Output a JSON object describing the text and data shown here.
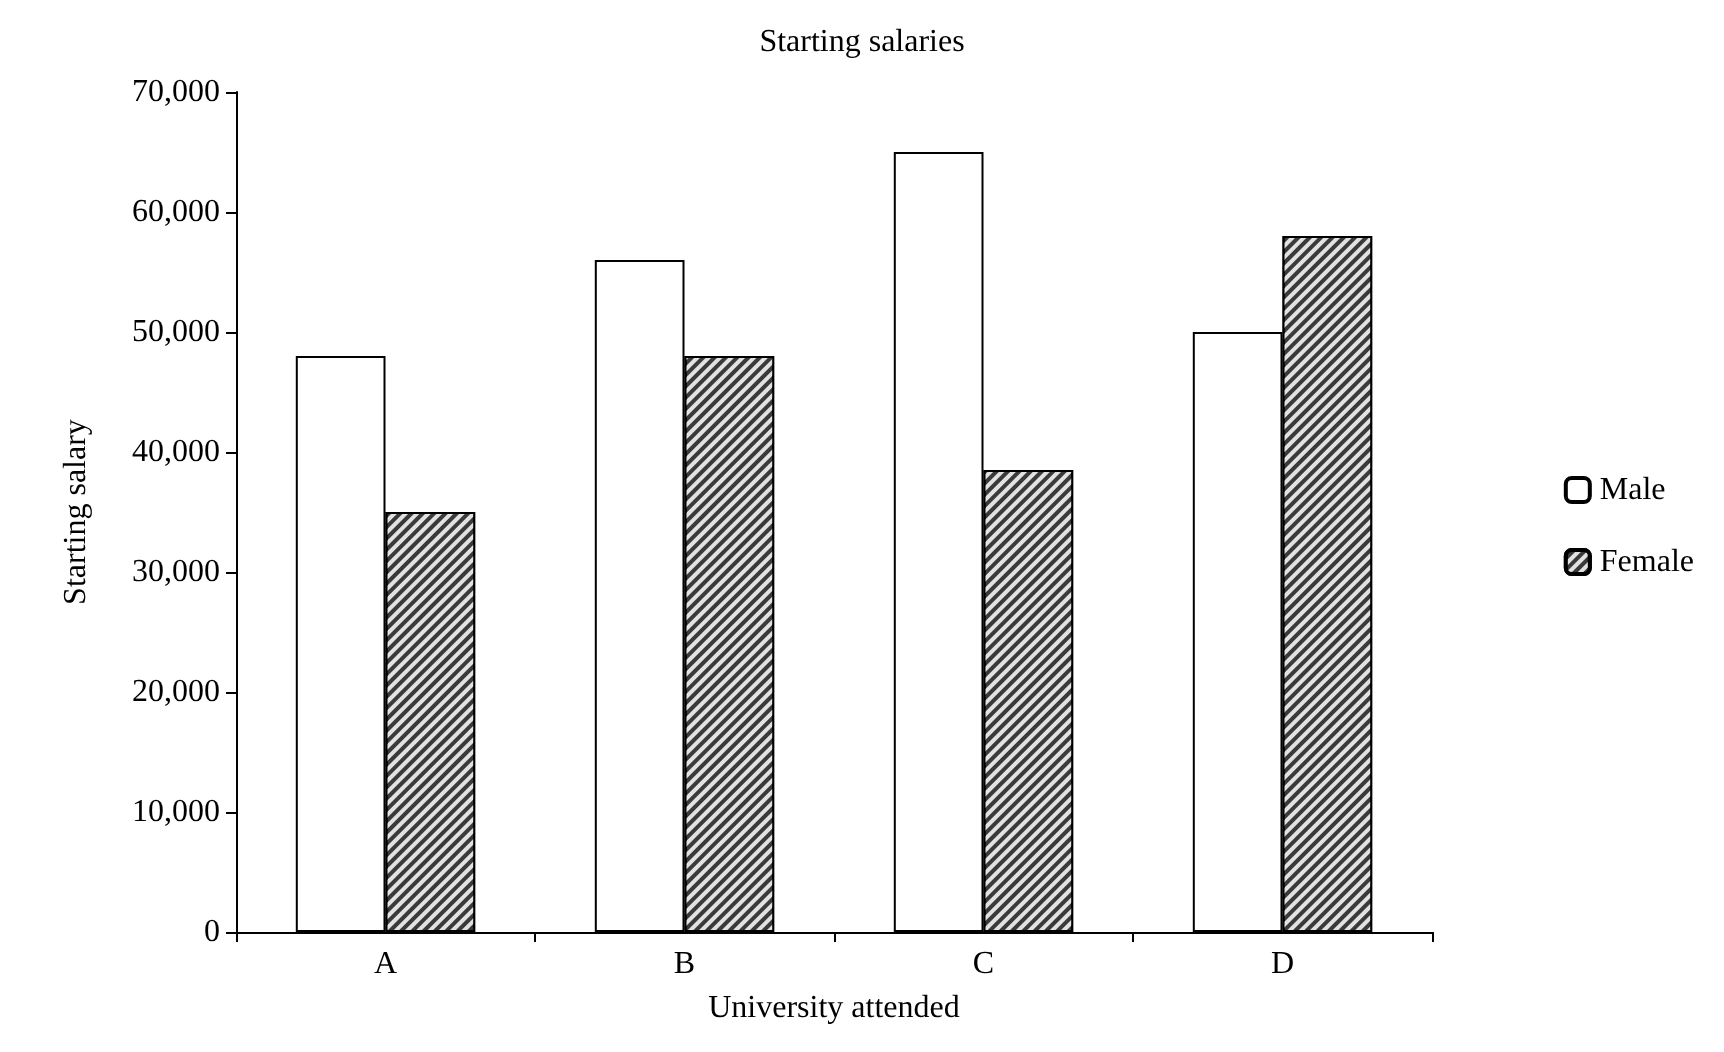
{
  "chart_data": {
    "type": "bar",
    "title": "Starting salaries",
    "xlabel": "University attended",
    "ylabel": "Starting salary",
    "categories": [
      "A",
      "B",
      "C",
      "D"
    ],
    "series": [
      {
        "name": "Male",
        "color": "#ffffff",
        "values": [
          48000,
          56000,
          65000,
          50000
        ]
      },
      {
        "name": "Female",
        "color": "#3a3a3a",
        "values": [
          35000,
          48000,
          38500,
          58000
        ]
      }
    ],
    "ylim": [
      0,
      70000
    ],
    "yticks": [
      0,
      {
        "value": 10000,
        "label": "10,000"
      },
      {
        "value": 20000,
        "label": "20,000"
      },
      {
        "value": 30000,
        "label": "30,000"
      },
      {
        "value": 40000,
        "label": "40,000"
      },
      {
        "value": 50000,
        "label": "50,000"
      },
      {
        "value": 60000,
        "label": "60,000"
      },
      {
        "value": 70000,
        "label": "70,000"
      }
    ],
    "grid": false,
    "legend": "right"
  }
}
